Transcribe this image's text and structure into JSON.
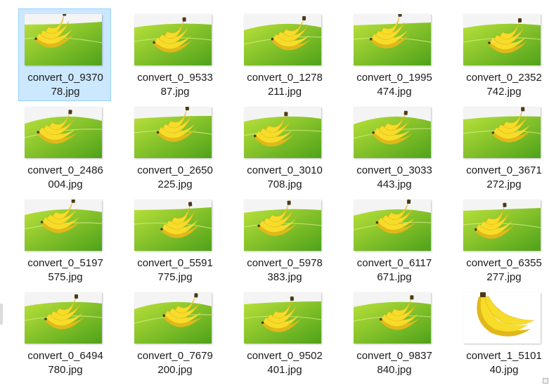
{
  "files": [
    {
      "name": "convert_0_9370\n78.jpg",
      "variant": "leaf",
      "selected": true
    },
    {
      "name": "convert_0_9533\n87.jpg",
      "variant": "leaf"
    },
    {
      "name": "convert_0_1278\n211.jpg",
      "variant": "leaf"
    },
    {
      "name": "convert_0_1995\n474.jpg",
      "variant": "leaf"
    },
    {
      "name": "convert_0_2352\n742.jpg",
      "variant": "leaf"
    },
    {
      "name": "convert_0_2486\n004.jpg",
      "variant": "leaf"
    },
    {
      "name": "convert_0_2650\n225.jpg",
      "variant": "leaf"
    },
    {
      "name": "convert_0_3010\n708.jpg",
      "variant": "leaf"
    },
    {
      "name": "convert_0_3033\n443.jpg",
      "variant": "leaf"
    },
    {
      "name": "convert_0_3671\n272.jpg",
      "variant": "leaf"
    },
    {
      "name": "convert_0_5197\n575.jpg",
      "variant": "leaf"
    },
    {
      "name": "convert_0_5591\n775.jpg",
      "variant": "leaf"
    },
    {
      "name": "convert_0_5978\n383.jpg",
      "variant": "leaf"
    },
    {
      "name": "convert_0_6117\n671.jpg",
      "variant": "leaf"
    },
    {
      "name": "convert_0_6355\n277.jpg",
      "variant": "leaf"
    },
    {
      "name": "convert_0_6494\n780.jpg",
      "variant": "leaf"
    },
    {
      "name": "convert_0_7679\n200.jpg",
      "variant": "leaf"
    },
    {
      "name": "convert_0_9502\n401.jpg",
      "variant": "leaf"
    },
    {
      "name": "convert_0_9837\n840.jpg",
      "variant": "leaf"
    },
    {
      "name": "convert_1_5101\n40.jpg",
      "variant": "white"
    }
  ],
  "colors": {
    "selection_bg": "#cce8ff",
    "selection_border": "#99d1ff",
    "leaf_light": "#b7e03a",
    "leaf_dark": "#4fa21a",
    "banana": "#f7dc2a",
    "banana_shade": "#e0b81a",
    "banana_tip": "#4b3b14"
  }
}
